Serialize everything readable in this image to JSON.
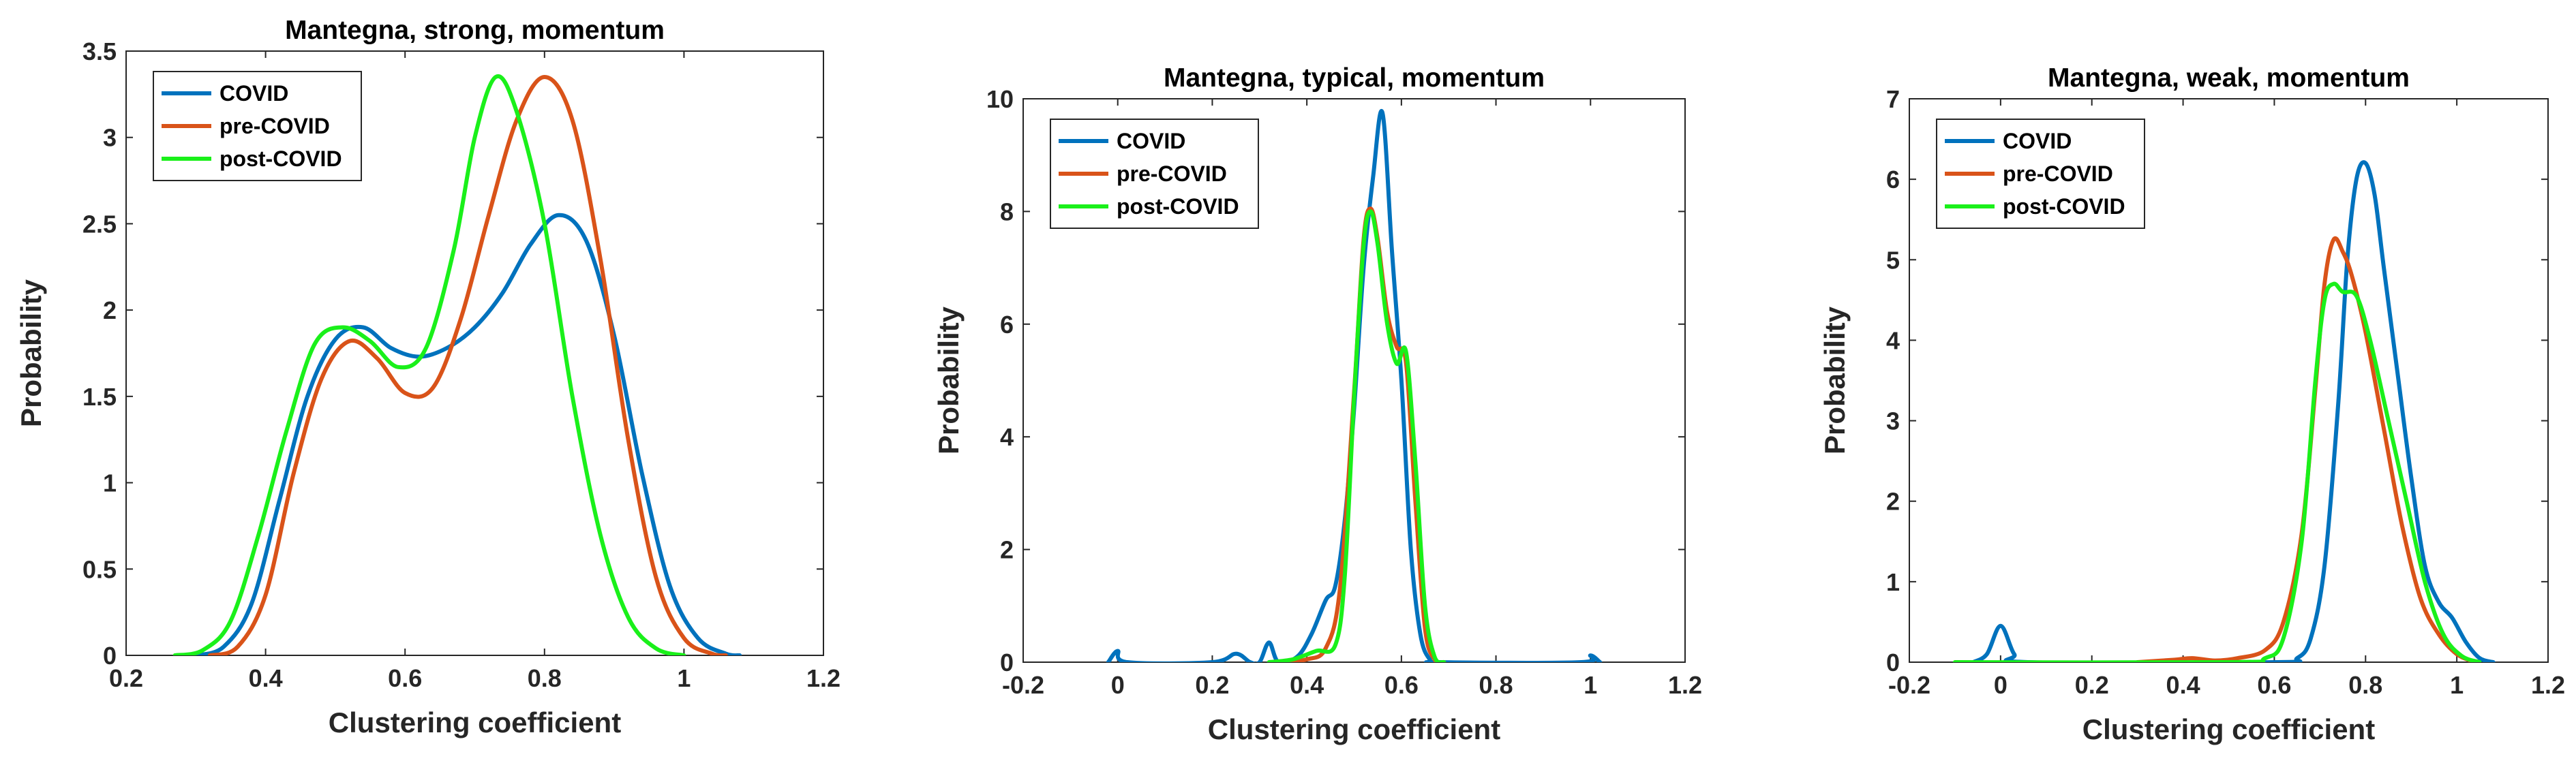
{
  "chart_data": [
    {
      "type": "line",
      "title": "Mantegna, strong, momentum",
      "xlabel": "Clustering coefficient",
      "ylabel": "Probability",
      "xlim": [
        0.2,
        1.2
      ],
      "ylim": [
        0,
        3.5
      ],
      "xticks": [
        0.2,
        0.4,
        0.6,
        0.8,
        1,
        1.2
      ],
      "xtick_labels": [
        "0.2",
        "0.4",
        "0.6",
        "0.8",
        "1",
        "1.2"
      ],
      "yticks": [
        0,
        0.5,
        1,
        1.5,
        2,
        2.5,
        3,
        3.5
      ],
      "ytick_labels": [
        "0",
        "0.5",
        "1",
        "1.5",
        "2",
        "2.5",
        "3",
        "3.5"
      ],
      "legend_position": "top-left",
      "series": [
        {
          "name": "COVID",
          "color": "#0072BD",
          "points": [
            [
              0.3,
              0.0
            ],
            [
              0.34,
              0.05
            ],
            [
              0.38,
              0.3
            ],
            [
              0.42,
              0.9
            ],
            [
              0.46,
              1.5
            ],
            [
              0.5,
              1.83
            ],
            [
              0.54,
              1.9
            ],
            [
              0.58,
              1.78
            ],
            [
              0.62,
              1.73
            ],
            [
              0.66,
              1.78
            ],
            [
              0.7,
              1.9
            ],
            [
              0.74,
              2.1
            ],
            [
              0.78,
              2.38
            ],
            [
              0.82,
              2.55
            ],
            [
              0.86,
              2.4
            ],
            [
              0.9,
              1.85
            ],
            [
              0.94,
              1.05
            ],
            [
              0.98,
              0.4
            ],
            [
              1.02,
              0.1
            ],
            [
              1.06,
              0.01
            ],
            [
              1.08,
              0.0
            ]
          ]
        },
        {
          "name": "pre-COVID",
          "color": "#D95319",
          "points": [
            [
              0.32,
              0.0
            ],
            [
              0.36,
              0.05
            ],
            [
              0.4,
              0.35
            ],
            [
              0.44,
              1.05
            ],
            [
              0.48,
              1.6
            ],
            [
              0.52,
              1.82
            ],
            [
              0.56,
              1.72
            ],
            [
              0.6,
              1.52
            ],
            [
              0.64,
              1.55
            ],
            [
              0.68,
              1.95
            ],
            [
              0.72,
              2.55
            ],
            [
              0.76,
              3.1
            ],
            [
              0.8,
              3.35
            ],
            [
              0.84,
              3.1
            ],
            [
              0.88,
              2.3
            ],
            [
              0.92,
              1.25
            ],
            [
              0.96,
              0.45
            ],
            [
              1.0,
              0.1
            ],
            [
              1.04,
              0.01
            ],
            [
              1.06,
              0.0
            ]
          ]
        },
        {
          "name": "post-COVID",
          "color": "#1AF01A",
          "points": [
            [
              0.27,
              0.0
            ],
            [
              0.31,
              0.03
            ],
            [
              0.35,
              0.2
            ],
            [
              0.39,
              0.7
            ],
            [
              0.43,
              1.3
            ],
            [
              0.47,
              1.8
            ],
            [
              0.51,
              1.9
            ],
            [
              0.55,
              1.82
            ],
            [
              0.59,
              1.67
            ],
            [
              0.63,
              1.78
            ],
            [
              0.67,
              2.35
            ],
            [
              0.7,
              3.0
            ],
            [
              0.73,
              3.35
            ],
            [
              0.76,
              3.15
            ],
            [
              0.8,
              2.5
            ],
            [
              0.84,
              1.5
            ],
            [
              0.88,
              0.7
            ],
            [
              0.92,
              0.22
            ],
            [
              0.96,
              0.04
            ],
            [
              1.0,
              0.0
            ]
          ]
        }
      ]
    },
    {
      "type": "line",
      "title": "Mantegna, typical, momentum",
      "xlabel": "Clustering coefficient",
      "ylabel": "Probability",
      "xlim": [
        -0.2,
        1.2
      ],
      "ylim": [
        0,
        10
      ],
      "xticks": [
        -0.2,
        0,
        0.2,
        0.4,
        0.6,
        0.8,
        1,
        1.2
      ],
      "xtick_labels": [
        "-0.2",
        "0",
        "0.2",
        "0.4",
        "0.6",
        "0.8",
        "1",
        "1.2"
      ],
      "yticks": [
        0,
        2,
        4,
        6,
        8,
        10
      ],
      "ytick_labels": [
        "0",
        "2",
        "4",
        "6",
        "8",
        "10"
      ],
      "legend_position": "top-left",
      "series": [
        {
          "name": "COVID",
          "color": "#0072BD",
          "points": [
            [
              -0.02,
              0.0
            ],
            [
              0.0,
              0.2
            ],
            [
              0.02,
              0.0
            ],
            [
              0.2,
              0.0
            ],
            [
              0.25,
              0.15
            ],
            [
              0.28,
              0.0
            ],
            [
              0.3,
              0.0
            ],
            [
              0.32,
              0.35
            ],
            [
              0.34,
              0.0
            ],
            [
              0.38,
              0.1
            ],
            [
              0.41,
              0.5
            ],
            [
              0.44,
              1.1
            ],
            [
              0.46,
              1.35
            ],
            [
              0.48,
              2.5
            ],
            [
              0.5,
              4.5
            ],
            [
              0.52,
              7.0
            ],
            [
              0.54,
              8.6
            ],
            [
              0.56,
              9.75
            ],
            [
              0.58,
              7.3
            ],
            [
              0.6,
              5.0
            ],
            [
              0.62,
              2.0
            ],
            [
              0.64,
              0.5
            ],
            [
              0.66,
              0.05
            ],
            [
              0.68,
              0.0
            ],
            [
              0.98,
              0.0
            ],
            [
              1.0,
              0.12
            ],
            [
              1.02,
              0.0
            ]
          ]
        },
        {
          "name": "pre-COVID",
          "color": "#D95319",
          "points": [
            [
              0.35,
              0.0
            ],
            [
              0.4,
              0.05
            ],
            [
              0.44,
              0.25
            ],
            [
              0.47,
              1.3
            ],
            [
              0.5,
              4.8
            ],
            [
              0.52,
              7.5
            ],
            [
              0.535,
              8.05
            ],
            [
              0.55,
              7.5
            ],
            [
              0.57,
              6.2
            ],
            [
              0.59,
              5.6
            ],
            [
              0.61,
              5.3
            ],
            [
              0.63,
              2.8
            ],
            [
              0.65,
              0.6
            ],
            [
              0.67,
              0.05
            ],
            [
              0.69,
              0.0
            ]
          ]
        },
        {
          "name": "post-COVID",
          "color": "#1AF01A",
          "points": [
            [
              0.32,
              0.0
            ],
            [
              0.37,
              0.05
            ],
            [
              0.42,
              0.2
            ],
            [
              0.46,
              0.3
            ],
            [
              0.48,
              1.5
            ],
            [
              0.5,
              4.7
            ],
            [
              0.52,
              7.4
            ],
            [
              0.535,
              8.0
            ],
            [
              0.55,
              7.4
            ],
            [
              0.57,
              6.0
            ],
            [
              0.59,
              5.3
            ],
            [
              0.61,
              5.5
            ],
            [
              0.63,
              3.5
            ],
            [
              0.65,
              1.0
            ],
            [
              0.67,
              0.1
            ],
            [
              0.69,
              0.0
            ]
          ]
        }
      ]
    },
    {
      "type": "line",
      "title": "Mantegna, weak, momentum",
      "xlabel": "Clustering coefficient",
      "ylabel": "Probability",
      "xlim": [
        -0.2,
        1.2
      ],
      "ylim": [
        0,
        7
      ],
      "xticks": [
        -0.2,
        0,
        0.2,
        0.4,
        0.6,
        0.8,
        1,
        1.2
      ],
      "xtick_labels": [
        "-0.2",
        "0",
        "0.2",
        "0.4",
        "0.6",
        "0.8",
        "1",
        "1.2"
      ],
      "yticks": [
        0,
        1,
        2,
        3,
        4,
        5,
        6,
        7
      ],
      "ytick_labels": [
        "0",
        "1",
        "2",
        "3",
        "4",
        "5",
        "6",
        "7"
      ],
      "legend_position": "top-left",
      "series": [
        {
          "name": "COVID",
          "color": "#0072BD",
          "points": [
            [
              -0.06,
              0.0
            ],
            [
              -0.03,
              0.1
            ],
            [
              0.0,
              0.45
            ],
            [
              0.03,
              0.1
            ],
            [
              0.06,
              0.0
            ],
            [
              0.6,
              0.0
            ],
            [
              0.65,
              0.05
            ],
            [
              0.68,
              0.3
            ],
            [
              0.71,
              1.2
            ],
            [
              0.74,
              3.2
            ],
            [
              0.76,
              5.0
            ],
            [
              0.78,
              6.0
            ],
            [
              0.8,
              6.2
            ],
            [
              0.82,
              5.8
            ],
            [
              0.84,
              4.9
            ],
            [
              0.87,
              3.6
            ],
            [
              0.9,
              2.3
            ],
            [
              0.93,
              1.2
            ],
            [
              0.96,
              0.75
            ],
            [
              0.99,
              0.55
            ],
            [
              1.02,
              0.25
            ],
            [
              1.05,
              0.05
            ],
            [
              1.08,
              0.0
            ]
          ]
        },
        {
          "name": "pre-COVID",
          "color": "#D95319",
          "points": [
            [
              0.3,
              0.0
            ],
            [
              0.38,
              0.03
            ],
            [
              0.42,
              0.05
            ],
            [
              0.47,
              0.02
            ],
            [
              0.52,
              0.05
            ],
            [
              0.58,
              0.15
            ],
            [
              0.62,
              0.5
            ],
            [
              0.66,
              1.6
            ],
            [
              0.69,
              3.4
            ],
            [
              0.71,
              4.7
            ],
            [
              0.73,
              5.25
            ],
            [
              0.75,
              5.1
            ],
            [
              0.77,
              4.8
            ],
            [
              0.8,
              4.1
            ],
            [
              0.84,
              2.9
            ],
            [
              0.88,
              1.7
            ],
            [
              0.92,
              0.8
            ],
            [
              0.96,
              0.35
            ],
            [
              1.0,
              0.1
            ],
            [
              1.04,
              0.0
            ]
          ]
        },
        {
          "name": "post-COVID",
          "color": "#1AF01A",
          "points": [
            [
              -0.1,
              0.0
            ],
            [
              0.5,
              0.0
            ],
            [
              0.58,
              0.05
            ],
            [
              0.62,
              0.3
            ],
            [
              0.66,
              1.5
            ],
            [
              0.69,
              3.5
            ],
            [
              0.71,
              4.5
            ],
            [
              0.73,
              4.7
            ],
            [
              0.75,
              4.6
            ],
            [
              0.78,
              4.55
            ],
            [
              0.81,
              4.0
            ],
            [
              0.85,
              3.0
            ],
            [
              0.89,
              2.0
            ],
            [
              0.93,
              1.0
            ],
            [
              0.97,
              0.35
            ],
            [
              1.01,
              0.08
            ],
            [
              1.05,
              0.0
            ]
          ]
        }
      ]
    }
  ]
}
